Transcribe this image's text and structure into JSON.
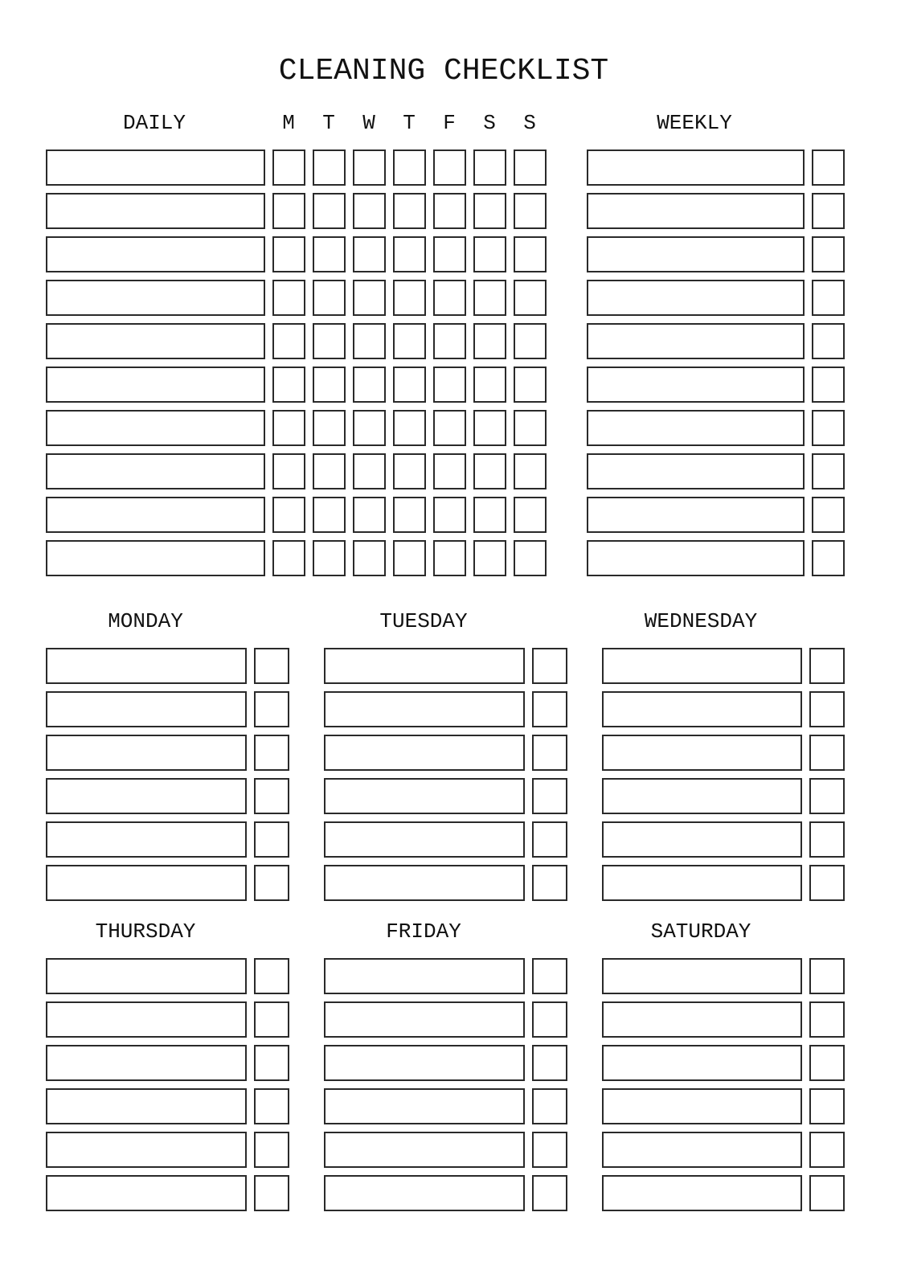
{
  "title": "CLEANING CHECKLIST",
  "daily": {
    "heading": "DAILY",
    "days": [
      "M",
      "T",
      "W",
      "T",
      "F",
      "S",
      "S"
    ],
    "rows": 10
  },
  "weekly": {
    "heading": "WEEKLY",
    "rows": 10
  },
  "day_sections": [
    {
      "heading": "MONDAY",
      "rows": 6
    },
    {
      "heading": "TUESDAY",
      "rows": 6
    },
    {
      "heading": "WEDNESDAY",
      "rows": 6
    },
    {
      "heading": "THURSDAY",
      "rows": 6
    },
    {
      "heading": "FRIDAY",
      "rows": 6
    },
    {
      "heading": "SATURDAY",
      "rows": 6
    }
  ],
  "colors": {
    "line": "#2a2a2a",
    "background": "#ffffff"
  }
}
